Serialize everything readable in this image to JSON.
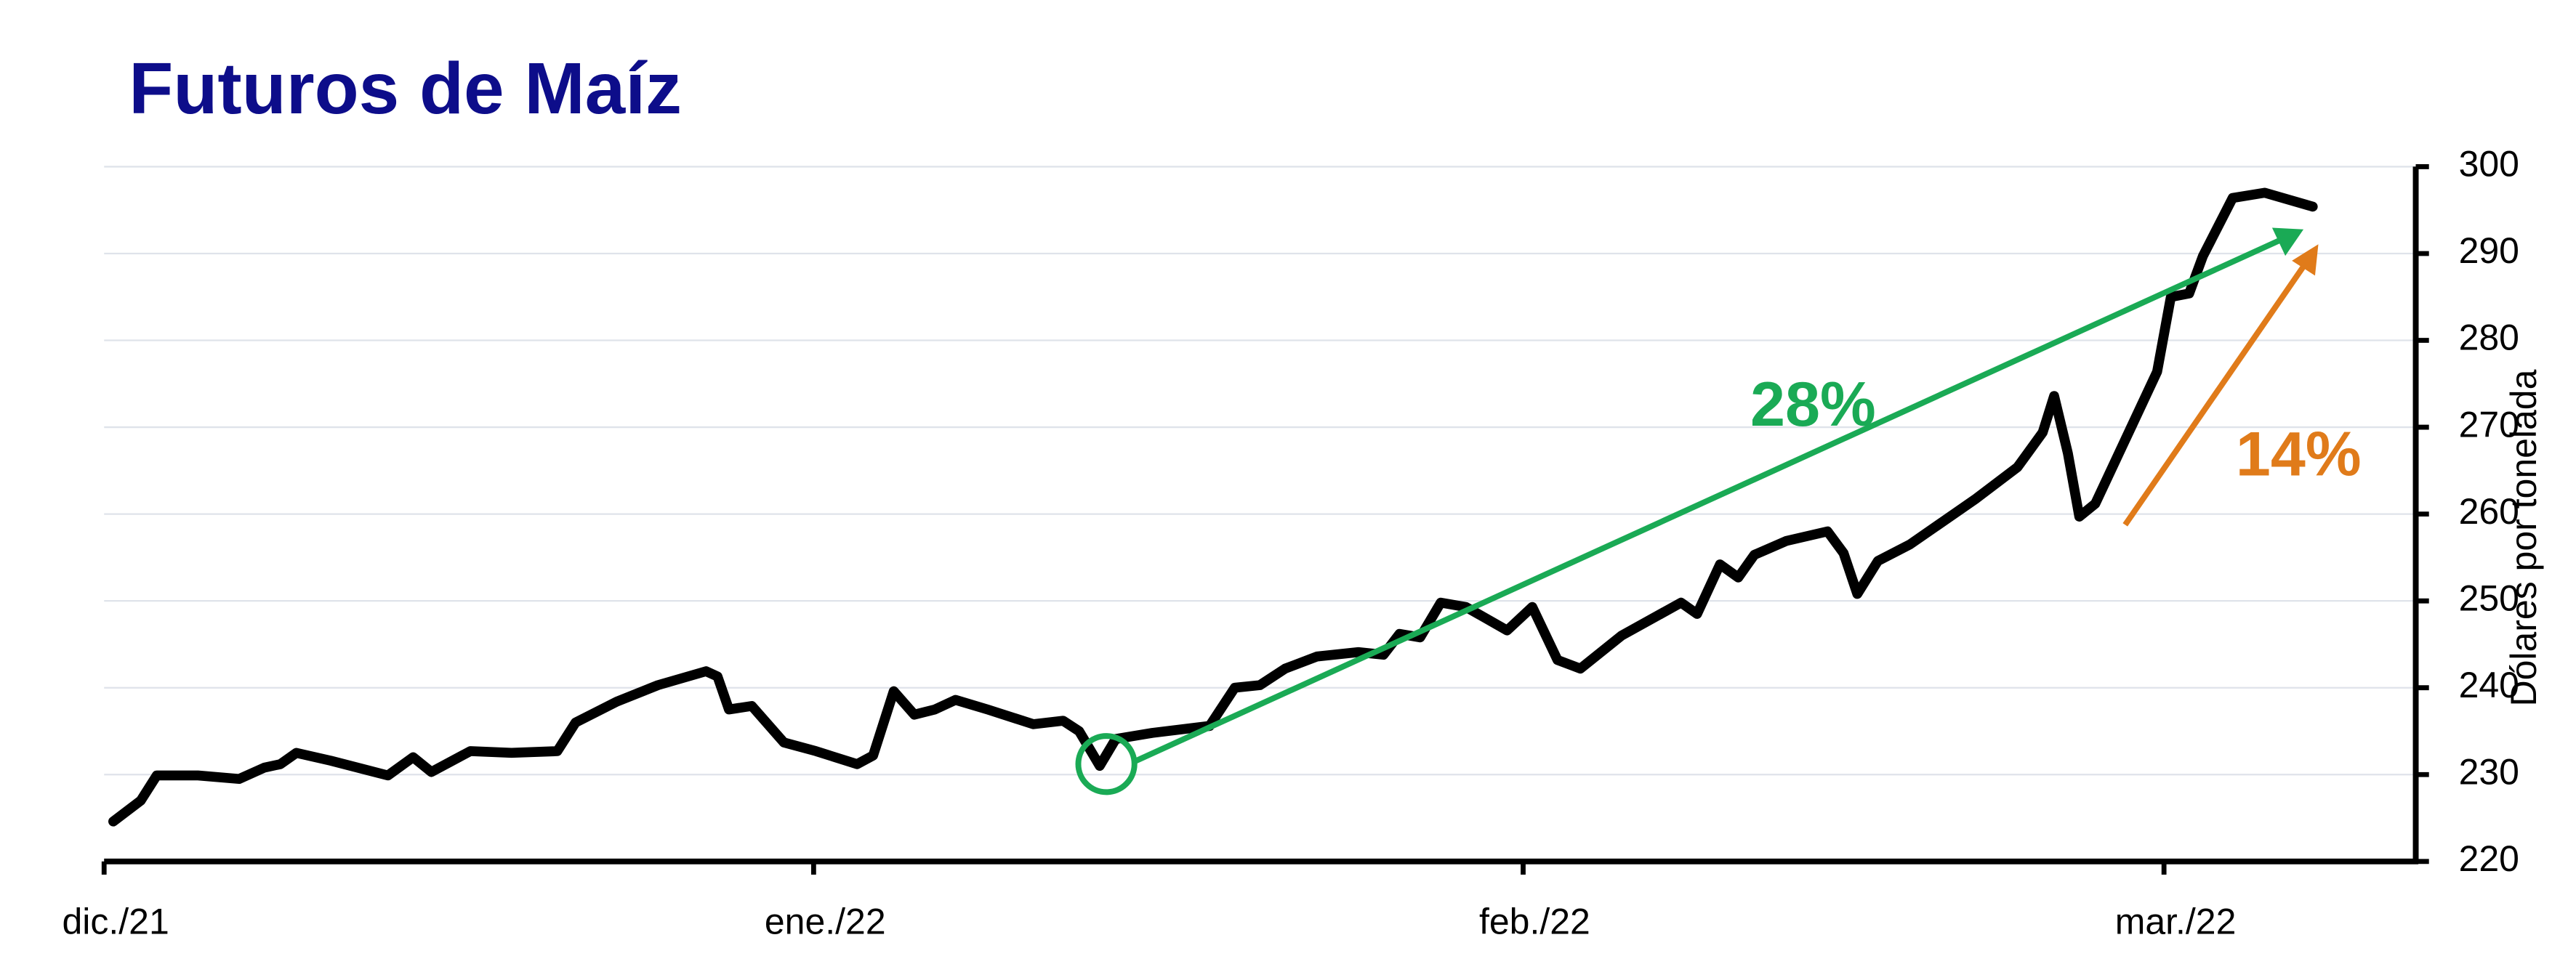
{
  "chart_data": {
    "type": "line",
    "title": "Futuros de Maíz",
    "y_axis_label": "Dólares por tonelada",
    "color": "#000000",
    "x": [
      0.4,
      1.6,
      2.3,
      4.1,
      5.9,
      7.0,
      7.7,
      8.4,
      9.9,
      12.4,
      13.5,
      14.3,
      16.0,
      17.8,
      19.8,
      20.6,
      22.4,
      24.2,
      26.3,
      26.8,
      27.3,
      28.3,
      29.7,
      31.1,
      32.9,
      33.6,
      34.5,
      35.4,
      36.3,
      37.2,
      38.6,
      40.6,
      41.9,
      42.6,
      43.5,
      44.2,
      45.8,
      48.3,
      49.4,
      50.5,
      51.6,
      53.0,
      54.8,
      55.9,
      56.6,
      57.5,
      58.4,
      59.5,
      61.3,
      62.4,
      63.5,
      64.5,
      66.3,
      68.9,
      69.6,
      70.6,
      71.4,
      72.1,
      73.5,
      75.3,
      76.0,
      76.6,
      77.5,
      78.9,
      81.8,
      83.6,
      84.7,
      85.2,
      85.8,
      86.3,
      87.0,
      88.6,
      89.7,
      90.3,
      91.1,
      91.7,
      93.0,
      94.4,
      96.5
    ],
    "values": [
      224.6,
      227,
      229.9,
      229.9,
      229.5,
      230.8,
      231.2,
      232.5,
      231.6,
      229.9,
      232,
      230.3,
      232.7,
      232.5,
      232.7,
      236,
      238.4,
      240.3,
      241.9,
      241.3,
      237.5,
      237.9,
      233.7,
      232.7,
      231.2,
      232.2,
      239.6,
      236.9,
      237.5,
      238.6,
      237.5,
      235.8,
      236.2,
      235,
      231,
      234.1,
      234.8,
      235.6,
      240,
      240.3,
      242.2,
      243.6,
      244.1,
      243.8,
      246.2,
      245.8,
      249.8,
      249.3,
      246.6,
      249.3,
      243.2,
      242.2,
      246,
      249.8,
      248.5,
      254.2,
      252.7,
      255.3,
      256.9,
      258,
      255.5,
      250.8,
      254.6,
      256.5,
      261.8,
      265.4,
      269.4,
      273.6,
      267,
      259.7,
      261.2,
      270.2,
      276.4,
      285,
      285.4,
      289.7,
      296.4,
      297,
      295.4
    ],
    "xlim": [
      0,
      101
    ],
    "xticks": [
      {
        "value": 0,
        "label": "dic./21"
      },
      {
        "value": 31,
        "label": "ene./22"
      },
      {
        "value": 62,
        "label": "feb./22"
      },
      {
        "value": 90,
        "label": "mar./22"
      }
    ],
    "ylim": [
      220,
      300
    ],
    "yticks": [
      220,
      230,
      240,
      250,
      260,
      270,
      280,
      290,
      300
    ],
    "grid": true,
    "annotations": [
      {
        "text": "28%",
        "color": "#1aaa55"
      },
      {
        "text": "14%",
        "color": "#e07b1a"
      }
    ]
  }
}
